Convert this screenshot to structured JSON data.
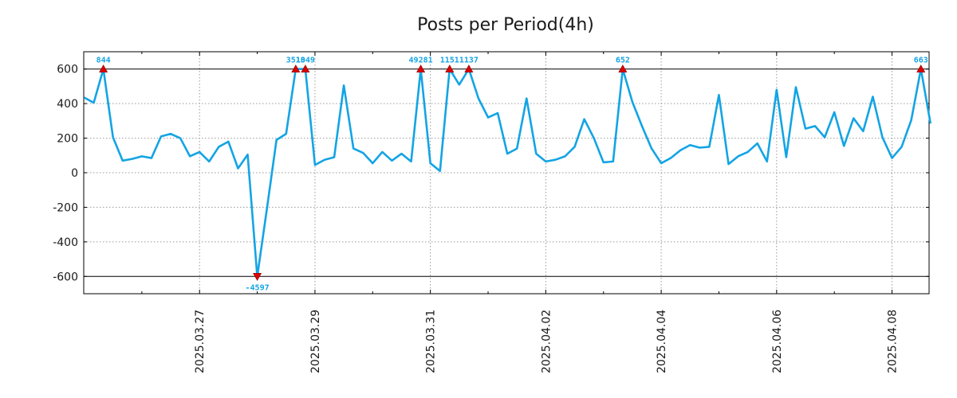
{
  "chart_data": {
    "type": "line",
    "title": "Posts per Period(4h)",
    "xlabel": "",
    "ylabel": "",
    "ylim": [
      -700,
      700
    ],
    "clip_limits": [
      -600,
      600
    ],
    "grid": true,
    "yticks": [
      -600,
      -400,
      -200,
      0,
      200,
      400,
      600
    ],
    "ytick_labels": [
      "-600",
      "-400",
      "-200",
      "0",
      "200",
      "400",
      "600"
    ],
    "xtick_labels": [
      "2025.03.27",
      "2025.03.29",
      "2025.03.31",
      "2025.04.02",
      "2025.04.04",
      "2025.04.06",
      "2025.04.08"
    ],
    "xtick_index": [
      12,
      24,
      36,
      48,
      60,
      72,
      84
    ],
    "series": [
      {
        "name": "Posts",
        "color": "#13a4e4",
        "values": [
          435,
          405,
          600,
          205,
          70,
          80,
          95,
          85,
          210,
          225,
          200,
          95,
          120,
          65,
          150,
          180,
          25,
          105,
          -600,
          -210,
          190,
          225,
          600,
          600,
          45,
          75,
          90,
          505,
          140,
          115,
          55,
          120,
          70,
          110,
          65,
          600,
          55,
          10,
          600,
          510,
          600,
          430,
          320,
          345,
          110,
          140,
          430,
          110,
          65,
          75,
          95,
          150,
          310,
          200,
          60,
          65,
          600,
          410,
          270,
          140,
          55,
          85,
          130,
          160,
          145,
          150,
          450,
          50,
          95,
          120,
          170,
          65,
          480,
          90,
          495,
          255,
          270,
          205,
          350,
          155,
          315,
          240,
          440,
          205,
          85,
          150,
          305,
          600,
          285
        ]
      }
    ],
    "clipped_points": [
      {
        "index": 2,
        "label": "844",
        "direction": "up"
      },
      {
        "index": 18,
        "label": "-4597",
        "direction": "down"
      },
      {
        "index": 22,
        "label": "3513",
        "direction": "up"
      },
      {
        "index": 23,
        "label": "1049",
        "direction": "up"
      },
      {
        "index": 35,
        "label": "49281",
        "direction": "up"
      },
      {
        "index": 38,
        "label": "1151",
        "direction": "up"
      },
      {
        "index": 40,
        "label": "1137",
        "direction": "up"
      },
      {
        "index": 56,
        "label": "652",
        "direction": "up"
      },
      {
        "index": 87,
        "label": "663",
        "direction": "up"
      }
    ],
    "marker_color": "#dd0000"
  }
}
